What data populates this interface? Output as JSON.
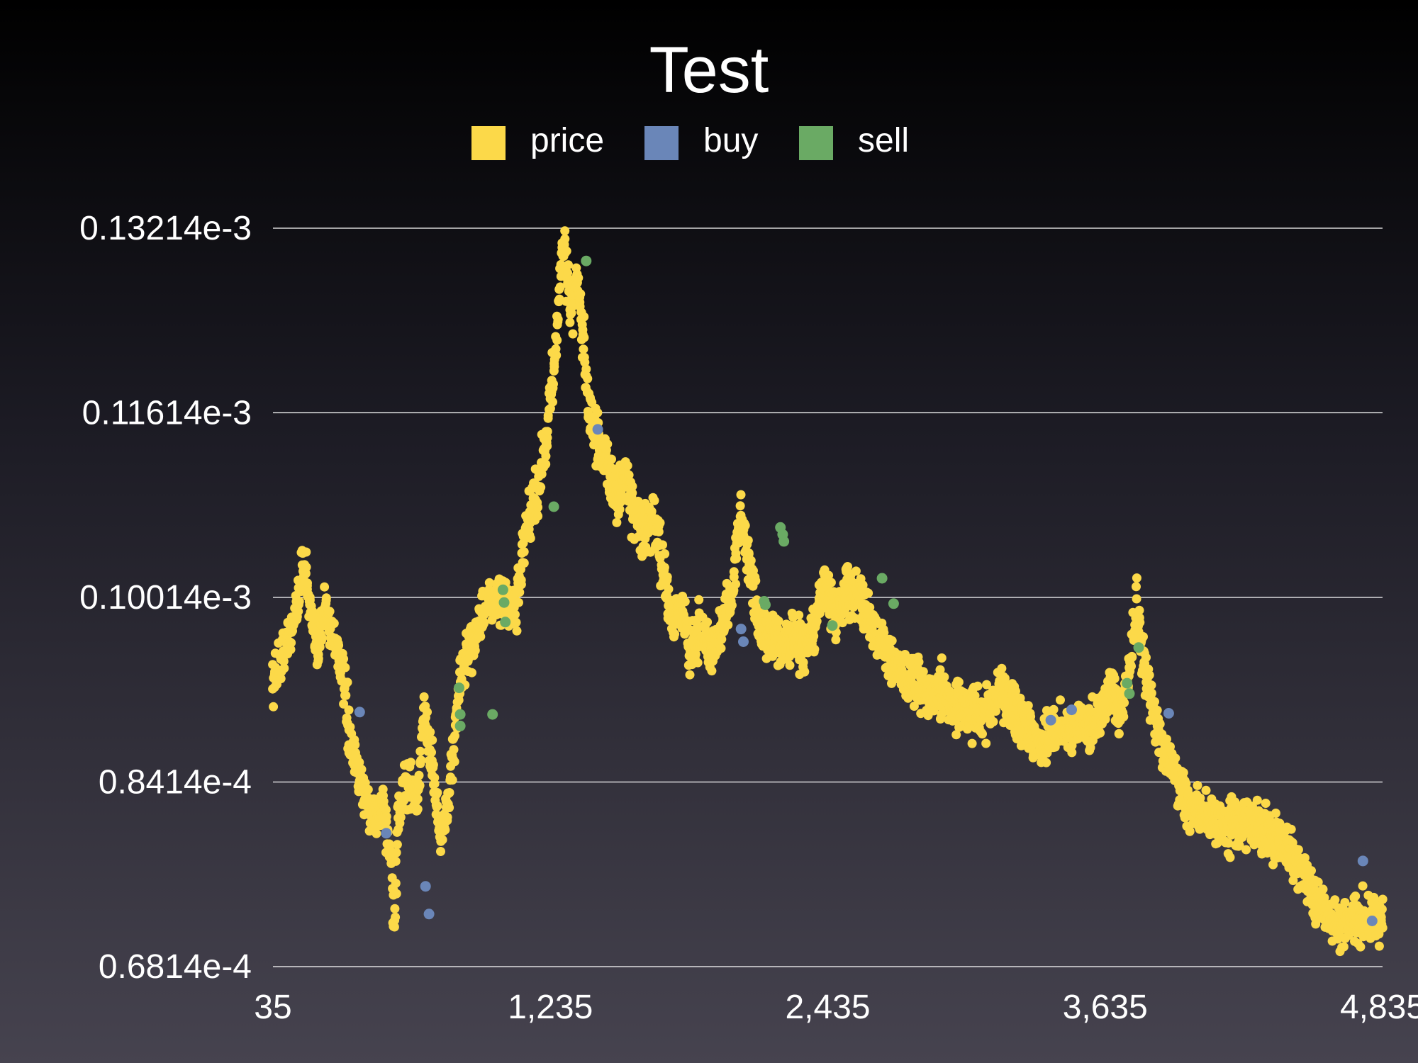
{
  "chart_data": {
    "type": "scatter",
    "title": "Test",
    "xlabel": "",
    "ylabel": "",
    "legend_position": "top",
    "grid": "horizontal",
    "xlim": [
      35,
      4835
    ],
    "ylim": [
      6.814e-05,
      0.00013214
    ],
    "x_ticks": [
      35,
      1235,
      2435,
      3635,
      4835
    ],
    "x_tick_labels": [
      "35",
      "1,235",
      "2,435",
      "3,635",
      "4,835"
    ],
    "y_ticks": [
      6.814e-05,
      8.414e-05,
      0.00010014,
      0.00011614,
      0.00013214
    ],
    "y_tick_labels": [
      "0.6814e-4",
      "0.8414e-4",
      "0.10014e-3",
      "0.11614e-3",
      "0.13214e-3"
    ],
    "colors": {
      "price": "#fcd949",
      "buy": "#6a86b8",
      "sell": "#6aaa64",
      "grid": "#ffffff"
    },
    "price_path": {
      "x": [
        35,
        60,
        90,
        130,
        170,
        205,
        230,
        260,
        290,
        330,
        370,
        400,
        430,
        470,
        510,
        540,
        560,
        580,
        600,
        630,
        660,
        690,
        710,
        740,
        760,
        800,
        840,
        900,
        960,
        1010,
        1050,
        1090,
        1120,
        1150,
        1180,
        1210,
        1240,
        1270,
        1290,
        1310,
        1330,
        1350,
        1370,
        1400,
        1440,
        1480,
        1520,
        1560,
        1600,
        1640,
        1680,
        1720,
        1760,
        1800,
        1840,
        1880,
        1930,
        1980,
        2020,
        2060,
        2100,
        2140,
        2170,
        2200,
        2240,
        2280,
        2330,
        2380,
        2420,
        2470,
        2520,
        2570,
        2620,
        2670,
        2720,
        2770,
        2820,
        2870,
        2930,
        2990,
        3050,
        3110,
        3170,
        3230,
        3290,
        3350,
        3410,
        3470,
        3500,
        3530,
        3570,
        3610,
        3650,
        3700,
        3740,
        3770,
        3810,
        3850,
        3890,
        3930,
        3960,
        3990,
        4040,
        4090,
        4140,
        4200,
        4260,
        4320,
        4380,
        4440,
        4500,
        4560,
        4620,
        4670,
        4700,
        4740,
        4780,
        4800,
        4820,
        4835
      ],
      "y": [
        9.25e-05,
        9.45e-05,
        9.6e-05,
        9.85e-05,
        0.0001035,
        9.75e-05,
        9.55e-05,
        9.95e-05,
        9.7e-05,
        9.45e-05,
        8.75e-05,
        8.5e-05,
        8.35e-05,
        8.1e-05,
        8.25e-05,
        7.85e-05,
        7.2e-05,
        8.2e-05,
        8.35e-05,
        8.45e-05,
        8.2e-05,
        9.05e-05,
        8.75e-05,
        8.3e-05,
        7.9e-05,
        8.35e-05,
        9.25e-05,
        9.65e-05,
        9.95e-05,
        0.0001,
        9.9e-05,
        9.95e-05,
        0.0001045,
        0.0001075,
        0.0001095,
        0.000113,
        0.000118,
        0.000125,
        0.0001315,
        0.000127,
        0.000125,
        0.000128,
        0.0001245,
        0.0001165,
        0.0001135,
        0.0001115,
        0.0001085,
        0.000111,
        0.000107,
        0.0001055,
        0.000107,
        0.000103,
        9.85e-05,
        9.95e-05,
        9.55e-05,
        9.7e-05,
        9.55e-05,
        9.75e-05,
        0.0001005,
        0.0001075,
        0.000102,
        9.85e-05,
        9.6e-05,
        9.75e-05,
        9.55e-05,
        9.7e-05,
        9.55e-05,
        9.75e-05,
        0.0001015,
        9.85e-05,
        0.000101,
        0.0001005,
        9.75e-05,
        9.6e-05,
        9.45e-05,
        9.3e-05,
        9.25e-05,
        9.15e-05,
        9.2e-05,
        9.1e-05,
        9.05e-05,
        9e-05,
        9.2e-05,
        9.1e-05,
        8.9e-05,
        8.75e-05,
        8.9e-05,
        8.85e-05,
        8.8e-05,
        8.95e-05,
        8.85e-05,
        9.05e-05,
        9.2e-05,
        9e-05,
        9.35e-05,
        9.95e-05,
        9.35e-05,
        9e-05,
        8.65e-05,
        8.55e-05,
        8.4e-05,
        8.2e-05,
        8.15e-05,
        8.1e-05,
        8.05e-05,
        8e-05,
        8.05e-05,
        8e-05,
        7.9e-05,
        7.8e-05,
        7.6e-05,
        7.35e-05,
        7.2e-05,
        7.15e-05,
        7.2e-05,
        7.25e-05,
        7.2e-05,
        7.35e-05,
        7.25e-05,
        7.3e-05
      ]
    },
    "series": [
      {
        "name": "price",
        "note": "dense cloud of points around price_path"
      },
      {
        "name": "buy",
        "x": [
          410,
          525,
          695,
          710,
          1440,
          2060,
          2070,
          3400,
          3490,
          3910,
          4750,
          4790
        ],
        "y": [
          9.02e-05,
          7.97e-05,
          7.51e-05,
          7.27e-05,
          0.0001147,
          9.74e-05,
          9.63e-05,
          8.95e-05,
          9.04e-05,
          9.01e-05,
          7.73e-05,
          7.21e-05
        ]
      },
      {
        "name": "sell",
        "x": [
          840,
          845,
          845,
          985,
          1030,
          1035,
          1040,
          1250,
          1390,
          2160,
          2165,
          2230,
          2240,
          2245,
          2455,
          2670,
          2720,
          3730,
          3740,
          3780
        ],
        "y": [
          9.23e-05,
          9e-05,
          8.9e-05,
          9e-05,
          0.0001008,
          9.97e-05,
          9.8e-05,
          0.000108,
          0.0001293,
          9.98e-05,
          9.95e-05,
          0.0001062,
          0.0001056,
          0.000105,
          9.77e-05,
          0.0001018,
          9.96e-05,
          9.27e-05,
          9.18e-05,
          9.58e-05
        ]
      }
    ]
  }
}
